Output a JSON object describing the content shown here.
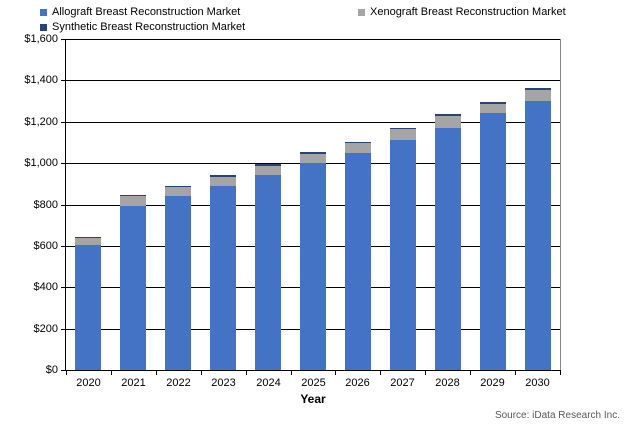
{
  "source_note": "Source: iData Research Inc.",
  "chart_data": {
    "type": "bar",
    "stacked": true,
    "title": "",
    "xlabel": "Year",
    "ylabel": "",
    "ylim": [
      0,
      1600
    ],
    "ytick_step": 200,
    "y_tick_labels": [
      "$0",
      "$200",
      "$400",
      "$600",
      "$800",
      "$1,000",
      "$1,200",
      "$1,400",
      "$1,600"
    ],
    "grid": true,
    "legend_position": "top",
    "categories": [
      "2020",
      "2021",
      "2022",
      "2023",
      "2024",
      "2025",
      "2026",
      "2027",
      "2028",
      "2029",
      "2030"
    ],
    "series": [
      {
        "name": "Allograft Breast Reconstruction Market",
        "color": "#4472C4",
        "values": [
          605,
          795,
          840,
          890,
          945,
          1000,
          1050,
          1113,
          1168,
          1240,
          1300
        ]
      },
      {
        "name": "Xenograft Breast Reconstruction Market",
        "color": "#A5A5A5",
        "values": [
          32,
          45,
          44,
          44,
          43,
          45,
          47,
          50,
          60,
          48,
          55
        ]
      },
      {
        "name": "Synthetic Breast Reconstruction Market",
        "color": "#264478",
        "values": [
          6,
          7,
          7,
          7,
          7,
          7,
          7,
          8,
          8,
          8,
          8
        ]
      }
    ],
    "colors": {
      "axis": "#000000",
      "gridline": "#000000",
      "plot_right_border": "#868686"
    }
  }
}
